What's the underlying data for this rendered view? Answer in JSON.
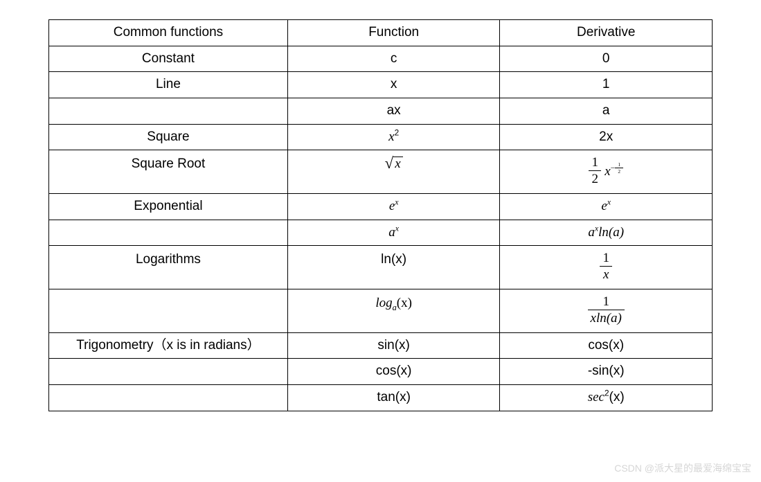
{
  "table": {
    "border_color": "#000000",
    "background_color": "#ffffff",
    "text_color": "#000000",
    "font_size_pt": 14,
    "column_widths_pct": [
      36,
      32,
      32
    ],
    "columns": [
      "Common functions",
      "Function",
      "Derivative"
    ],
    "rows": [
      {
        "name": "Constant",
        "function": "c",
        "derivative": "0"
      },
      {
        "name": "Line",
        "function": "x",
        "derivative": "1"
      },
      {
        "name": "",
        "function": "ax",
        "derivative": "a"
      },
      {
        "name": "Square",
        "function": "x^2",
        "derivative": "2x"
      },
      {
        "name": "Square Root",
        "function": "sqrt(x)",
        "derivative": "(1/2) x^(-1/2)"
      },
      {
        "name": "Exponential",
        "function": "e^x",
        "derivative": "e^x"
      },
      {
        "name": "",
        "function": "a^x",
        "derivative": "a^x ln(a)"
      },
      {
        "name": "Logarithms",
        "function": "ln(x)",
        "derivative": "1/x"
      },
      {
        "name": "",
        "function": "log_a(x)",
        "derivative": "1/(x ln(a))"
      },
      {
        "name": "Trigonometry（x is in radians）",
        "function": "sin(x)",
        "derivative": "cos(x)"
      },
      {
        "name": "",
        "function": "cos(x)",
        "derivative": "-sin(x)"
      },
      {
        "name": "",
        "function": "tan(x)",
        "derivative": "sec^2(x)"
      }
    ]
  },
  "labels": {
    "constant": "Constant",
    "line": "Line",
    "square": "Square",
    "square_root": "Square Root",
    "exponential": "Exponential",
    "logarithms": "Logarithms",
    "trigonometry": "Trigonometry（x is in radians）",
    "fn_c": "c",
    "d_c": "0",
    "fn_x": "x",
    "d_x": "1",
    "fn_ax": "ax",
    "d_ax": "a",
    "d_x2": "2x",
    "fn_lnx": "ln(x)",
    "fn_sin": "sin(x)",
    "d_sin": "cos(x)",
    "fn_cos": "cos(x)",
    "d_cos": "-sin(x)",
    "fn_tan": "tan(x)",
    "sec_tail": "(x)",
    "one": "1",
    "two": "2",
    "x": "x",
    "xlna": "xln(a)",
    "lna_tail": "ln(a)",
    "log": "log",
    "a": "a",
    "paren_x": "(x)",
    "e": "e",
    "x_sup": "x",
    "sq": "2",
    "sec": "sec"
  },
  "watermark": "CSDN @派大星的最爱海绵宝宝"
}
